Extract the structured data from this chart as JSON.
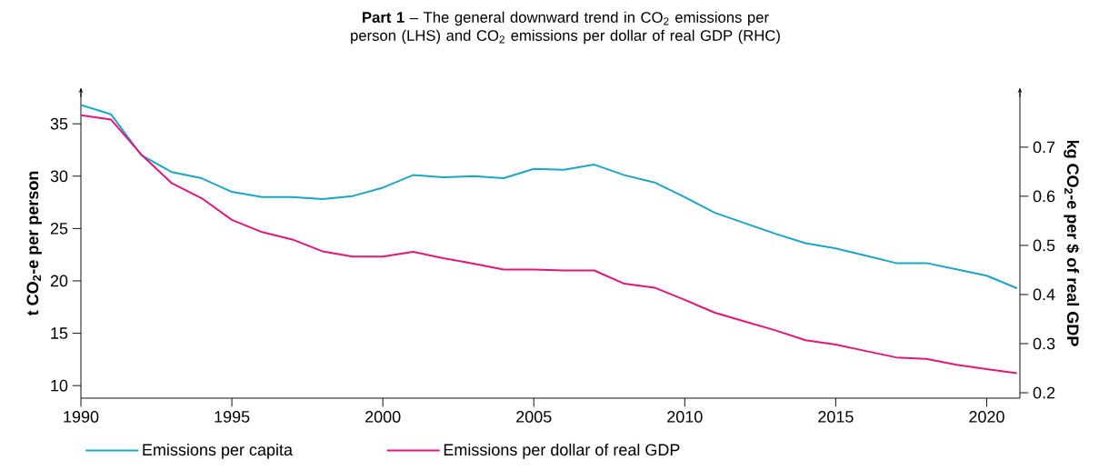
{
  "chart_data": {
    "type": "line",
    "title": "**Part 1** – The general downward trend in CO$_{2}$ emissions per person (LHS) and CO$_{2}$  emissions per dollar of real GDP (RHC)",
    "ylabel": "t CO$_{2}$-e per person",
    "y2label": "kg CO$_{2}$-e per $ of real GDP",
    "x": [
      1990,
      1991,
      1992,
      1993,
      1994,
      1995,
      1996,
      1997,
      1998,
      1999,
      2000,
      2001,
      2002,
      2003,
      2004,
      2005,
      2006,
      2007,
      2008,
      2009,
      2010,
      2011,
      2012,
      2013,
      2014,
      2015,
      2016,
      2017,
      2018,
      2019,
      2020,
      2021
    ],
    "series": [
      {
        "name": "Emissions per capita",
        "color": "#1aa6c6",
        "values": [
          36.8,
          35.9,
          32.0,
          30.4,
          29.8,
          28.5,
          28.0,
          28.0,
          27.8,
          28.1,
          28.9,
          30.1,
          29.9,
          30.0,
          29.8,
          30.7,
          30.6,
          31.1,
          30.1,
          29.4,
          28.0,
          26.5,
          25.5,
          24.5,
          23.6,
          23.1,
          22.4,
          21.7,
          21.7,
          21.1,
          20.5,
          19.3
        ]
      },
      {
        "name": "Emissions per dollar of real GDP",
        "color": "#e5157a",
        "axis": "y2",
        "values": [
          0.765,
          0.756,
          0.685,
          0.627,
          0.596,
          0.552,
          0.527,
          0.512,
          0.488,
          0.477,
          0.477,
          0.487,
          0.474,
          0.463,
          0.451,
          0.451,
          0.449,
          0.449,
          0.422,
          0.414,
          0.389,
          0.363,
          0.345,
          0.327,
          0.307,
          0.298,
          0.285,
          0.272,
          0.269,
          0.257,
          0.248,
          0.24
        ]
      }
    ],
    "xlim": [
      1990,
      2021.1
    ],
    "xticks": [
      1990,
      1995,
      2000,
      2005,
      2010,
      2015,
      2020
    ],
    "ylim": [
      8.8,
      38.4
    ],
    "yticks": [
      10,
      15,
      20,
      25,
      30,
      35
    ],
    "y2lim": [
      0.189,
      0.82
    ],
    "y2ticks": [
      0.2,
      0.3,
      0.4,
      0.5,
      0.6,
      0.7
    ],
    "legend": "bottom",
    "grid": false,
    "marker": "none",
    "line_style": "solid"
  }
}
